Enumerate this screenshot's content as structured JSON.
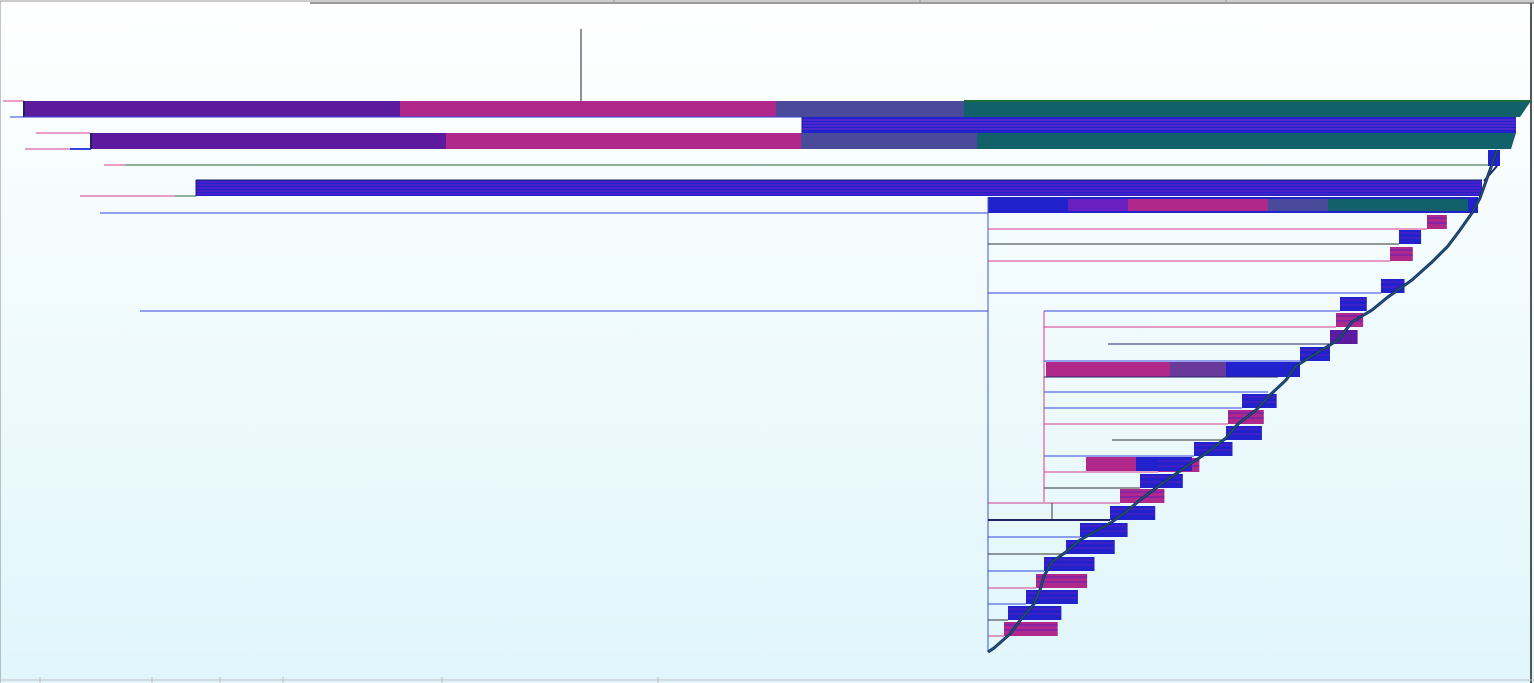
{
  "chart_data": {
    "type": "dendrogram",
    "orientation": "horizontal",
    "title": "",
    "xlabel": "",
    "ylabel": "",
    "tick_labels": [],
    "grid": false,
    "legend": "none",
    "root_marker": true,
    "colors": {
      "background_top": "#ffffff",
      "background_bottom": "#e0f6fb",
      "violet": "#5c1a9c",
      "magenta": "#b0288a",
      "teal": "#12606a",
      "green": "#1d6a3c",
      "blue": "#2222cc",
      "pink_line": "#d63c8a",
      "blue_line": "#3344dd",
      "dark_line": "#333333"
    }
  }
}
